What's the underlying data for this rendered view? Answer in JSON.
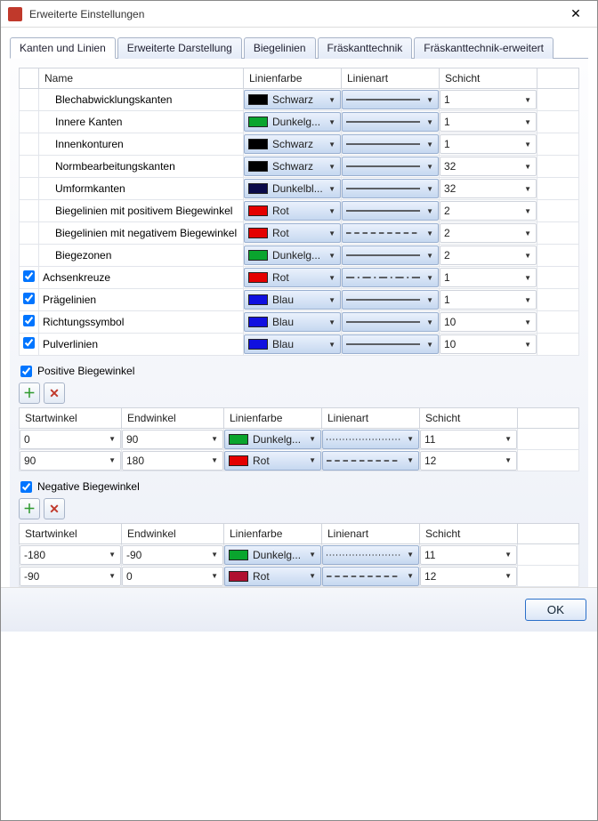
{
  "window": {
    "title": "Erweiterte Einstellungen"
  },
  "tabs": [
    {
      "label": "Kanten und Linien",
      "active": true
    },
    {
      "label": "Erweiterte Darstellung",
      "active": false
    },
    {
      "label": "Biegelinien",
      "active": false
    },
    {
      "label": "Fräskanttechnik",
      "active": false
    },
    {
      "label": "Fräskanttechnik-erweitert",
      "active": false
    }
  ],
  "mainHeaders": {
    "name": "Name",
    "color": "Linienfarbe",
    "line": "Linienart",
    "layer": "Schicht"
  },
  "rows": [
    {
      "chk": null,
      "name": "Blechabwicklungskanten",
      "colorHex": "#000000",
      "colorLabel": "Schwarz",
      "lineStyle": "solid",
      "layer": "1"
    },
    {
      "chk": null,
      "name": "Innere Kanten",
      "colorHex": "#0aa52e",
      "colorLabel": "Dunkelg...",
      "lineStyle": "solid",
      "layer": "1"
    },
    {
      "chk": null,
      "name": "Innenkonturen",
      "colorHex": "#000000",
      "colorLabel": "Schwarz",
      "lineStyle": "solid",
      "layer": "1"
    },
    {
      "chk": null,
      "name": "Normbearbeitungskanten",
      "colorHex": "#000000",
      "colorLabel": "Schwarz",
      "lineStyle": "solid",
      "layer": "32"
    },
    {
      "chk": null,
      "name": "Umformkanten",
      "colorHex": "#0a0a4a",
      "colorLabel": "Dunkelbl...",
      "lineStyle": "solid",
      "layer": "32"
    },
    {
      "chk": null,
      "name": "Biegelinien mit positivem Biegewinkel",
      "colorHex": "#e40000",
      "colorLabel": "Rot",
      "lineStyle": "solid",
      "layer": "2"
    },
    {
      "chk": null,
      "name": "Biegelinien mit negativem Biegewinkel",
      "colorHex": "#e40000",
      "colorLabel": "Rot",
      "lineStyle": "dashed",
      "layer": "2"
    },
    {
      "chk": null,
      "name": "Biegezonen",
      "colorHex": "#0aa52e",
      "colorLabel": "Dunkelg...",
      "lineStyle": "solid",
      "layer": "2"
    },
    {
      "chk": true,
      "name": "Achsenkreuze",
      "colorHex": "#e40000",
      "colorLabel": "Rot",
      "lineStyle": "dashdot",
      "layer": "1"
    },
    {
      "chk": true,
      "name": "Prägelinien",
      "colorHex": "#1010e0",
      "colorLabel": "Blau",
      "lineStyle": "solid",
      "layer": "1"
    },
    {
      "chk": true,
      "name": "Richtungssymbol",
      "colorHex": "#1010e0",
      "colorLabel": "Blau",
      "lineStyle": "solid",
      "layer": "10"
    },
    {
      "chk": true,
      "name": "Pulverlinien",
      "colorHex": "#1010e0",
      "colorLabel": "Blau",
      "lineStyle": "solid",
      "layer": "10"
    }
  ],
  "positive": {
    "label": "Positive Biegewinkel",
    "checked": true,
    "headers": {
      "start": "Startwinkel",
      "end": "Endwinkel",
      "color": "Linienfarbe",
      "line": "Linienart",
      "layer": "Schicht"
    },
    "rows": [
      {
        "start": "0",
        "end": "90",
        "colorHex": "#0aa52e",
        "colorLabel": "Dunkelg...",
        "lineStyle": "dotted",
        "layer": "11"
      },
      {
        "start": "90",
        "end": "180",
        "colorHex": "#e40000",
        "colorLabel": "Rot",
        "lineStyle": "dashed",
        "layer": "12"
      }
    ]
  },
  "negative": {
    "label": "Negative Biegewinkel",
    "checked": true,
    "headers": {
      "start": "Startwinkel",
      "end": "Endwinkel",
      "color": "Linienfarbe",
      "line": "Linienart",
      "layer": "Schicht"
    },
    "rows": [
      {
        "start": "-180",
        "end": "-90",
        "colorHex": "#0aa52e",
        "colorLabel": "Dunkelg...",
        "lineStyle": "dotted",
        "layer": "11"
      },
      {
        "start": "-90",
        "end": "0",
        "colorHex": "#b01030",
        "colorLabel": "Rot",
        "lineStyle": "dashed",
        "layer": "12"
      }
    ]
  },
  "buttons": {
    "ok": "OK"
  },
  "lineStyles": {
    "solid": {
      "dash": ""
    },
    "dashed": {
      "dash": "6,4"
    },
    "dotted": {
      "dash": "1,3"
    },
    "dashdot": {
      "dash": "10,4,2,4"
    }
  }
}
